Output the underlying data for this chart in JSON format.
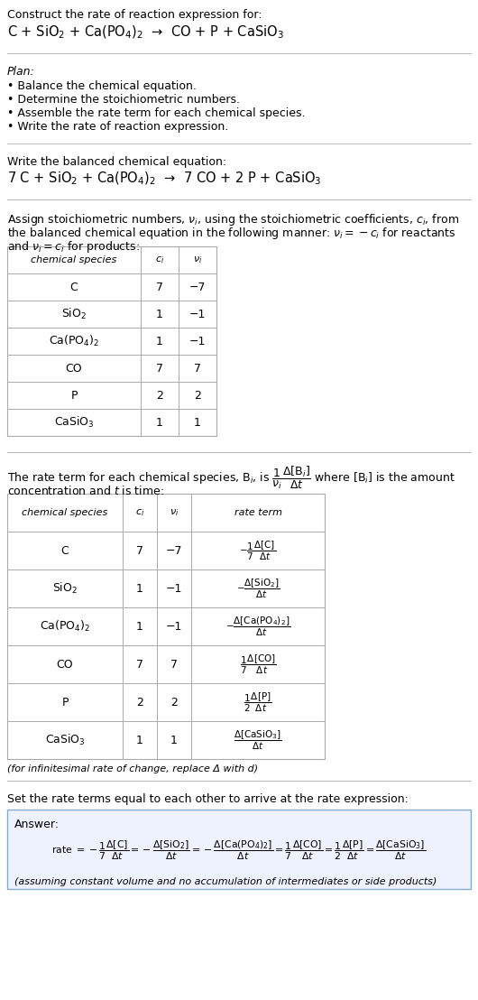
{
  "bg_color": "#ffffff",
  "title_line1": "Construct the rate of reaction expression for:",
  "reaction_unbalanced": "C + SiO$_2$ + Ca(PO$_4$)$_2$  →  CO + P + CaSiO$_3$",
  "plan_header": "Plan:",
  "plan_items": [
    "• Balance the chemical equation.",
    "• Determine the stoichiometric numbers.",
    "• Assemble the rate term for each chemical species.",
    "• Write the rate of reaction expression."
  ],
  "balanced_header": "Write the balanced chemical equation:",
  "reaction_balanced": "7 C + SiO$_2$ + Ca(PO$_4$)$_2$  →  7 CO + 2 P + CaSiO$_3$",
  "stoich_text1": "Assign stoichiometric numbers, $\\nu_i$, using the stoichiometric coefficients, $c_i$, from",
  "stoich_text2": "the balanced chemical equation in the following manner: $\\nu_i = -c_i$ for reactants",
  "stoich_text3": "and $\\nu_i = c_i$ for products:",
  "table1_headers": [
    "chemical species",
    "$c_i$",
    "$\\nu_i$"
  ],
  "table1_rows": [
    [
      "C",
      "7",
      "−7"
    ],
    [
      "SiO$_2$",
      "1",
      "−1"
    ],
    [
      "Ca(PO$_4$)$_2$",
      "1",
      "−1"
    ],
    [
      "CO",
      "7",
      "7"
    ],
    [
      "P",
      "2",
      "2"
    ],
    [
      "CaSiO$_3$",
      "1",
      "1"
    ]
  ],
  "rate_text1": "The rate term for each chemical species, B$_i$, is $\\dfrac{1}{\\nu_i}\\dfrac{\\Delta[\\mathrm{B}_i]}{\\Delta t}$ where [B$_i$] is the amount",
  "rate_text2": "concentration and $t$ is time:",
  "table2_headers": [
    "chemical species",
    "$c_i$",
    "$\\nu_i$",
    "rate term"
  ],
  "table2_rows": [
    [
      "C",
      "7",
      "−7",
      "$-\\dfrac{1}{7}\\dfrac{\\Delta[\\mathrm{C}]}{\\Delta t}$"
    ],
    [
      "SiO$_2$",
      "1",
      "−1",
      "$-\\dfrac{\\Delta[\\mathrm{SiO_2}]}{\\Delta t}$"
    ],
    [
      "Ca(PO$_4$)$_2$",
      "1",
      "−1",
      "$-\\dfrac{\\Delta[\\mathrm{Ca(PO_4)_2}]}{\\Delta t}$"
    ],
    [
      "CO",
      "7",
      "7",
      "$\\dfrac{1}{7}\\dfrac{\\Delta[\\mathrm{CO}]}{\\Delta t}$"
    ],
    [
      "P",
      "2",
      "2",
      "$\\dfrac{1}{2}\\dfrac{\\Delta[\\mathrm{P}]}{\\Delta t}$"
    ],
    [
      "CaSiO$_3$",
      "1",
      "1",
      "$\\dfrac{\\Delta[\\mathrm{CaSiO_3}]}{\\Delta t}$"
    ]
  ],
  "infinitesimal_note": "(for infinitesimal rate of change, replace Δ with d)",
  "set_rate_text": "Set the rate terms equal to each other to arrive at the rate expression:",
  "answer_label": "Answer:",
  "answer_rate_line": "rate $= -\\dfrac{1}{7}\\dfrac{\\Delta[\\mathrm{C}]}{\\Delta t} = -\\dfrac{\\Delta[\\mathrm{SiO_2}]}{\\Delta t} = -\\dfrac{\\Delta[\\mathrm{Ca(PO_4)_2}]}{\\Delta t} = \\dfrac{1}{7}\\dfrac{\\Delta[\\mathrm{CO}]}{\\Delta t} = \\dfrac{1}{2}\\dfrac{\\Delta[\\mathrm{P}]}{\\Delta t} = \\dfrac{\\Delta[\\mathrm{CaSiO_3}]}{\\Delta t}$",
  "answer_note": "(assuming constant volume and no accumulation of intermediates or side products)",
  "fs": 9.0,
  "fs_small": 8.0,
  "fs_reaction": 10.5
}
